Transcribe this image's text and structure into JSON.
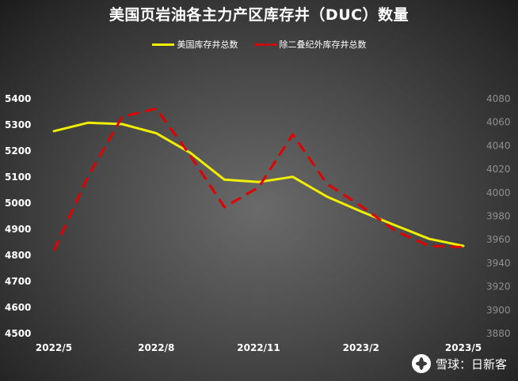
{
  "chart_data": {
    "type": "line",
    "title": "美国页岩油各主力产区库存井（DUC）数量",
    "x": [
      "2022/5",
      "2022/6",
      "2022/7",
      "2022/8",
      "2022/9",
      "2022/10",
      "2022/11",
      "2022/12",
      "2023/1",
      "2023/2",
      "2023/3",
      "2023/4",
      "2023/5"
    ],
    "x_tick_labels": [
      "2022/5",
      "2022/8",
      "2022/11",
      "2023/2",
      "2023/5"
    ],
    "y_left": {
      "ticks": [
        4500,
        4600,
        4700,
        4800,
        4900,
        5000,
        5100,
        5200,
        5300,
        5400
      ],
      "ylim": [
        4500,
        5400
      ]
    },
    "y_right": {
      "ticks": [
        3880,
        3900,
        3920,
        3940,
        3960,
        3980,
        4000,
        4020,
        4040,
        4060,
        4080
      ],
      "ylim": [
        3880,
        4080
      ]
    },
    "series": [
      {
        "name": "美国库存井总数",
        "axis": "left",
        "color": "#f2ee00",
        "style": "solid",
        "values": [
          5273,
          5305,
          5300,
          5265,
          5190,
          5087,
          5078,
          5098,
          5022,
          4965,
          4912,
          4860,
          4833
        ]
      },
      {
        "name": "除二叠纪外库存井总数",
        "axis": "right",
        "color": "#e00000",
        "style": "dashed",
        "values": [
          3950,
          4013,
          4064,
          4071,
          4031,
          3987,
          4004,
          4049,
          4007,
          3988,
          3967,
          3954,
          3953
        ]
      }
    ],
    "grid": false,
    "legend_position": "top"
  },
  "watermark": {
    "text": "雪球：日新客",
    "icon": "snowball-logo-icon"
  }
}
